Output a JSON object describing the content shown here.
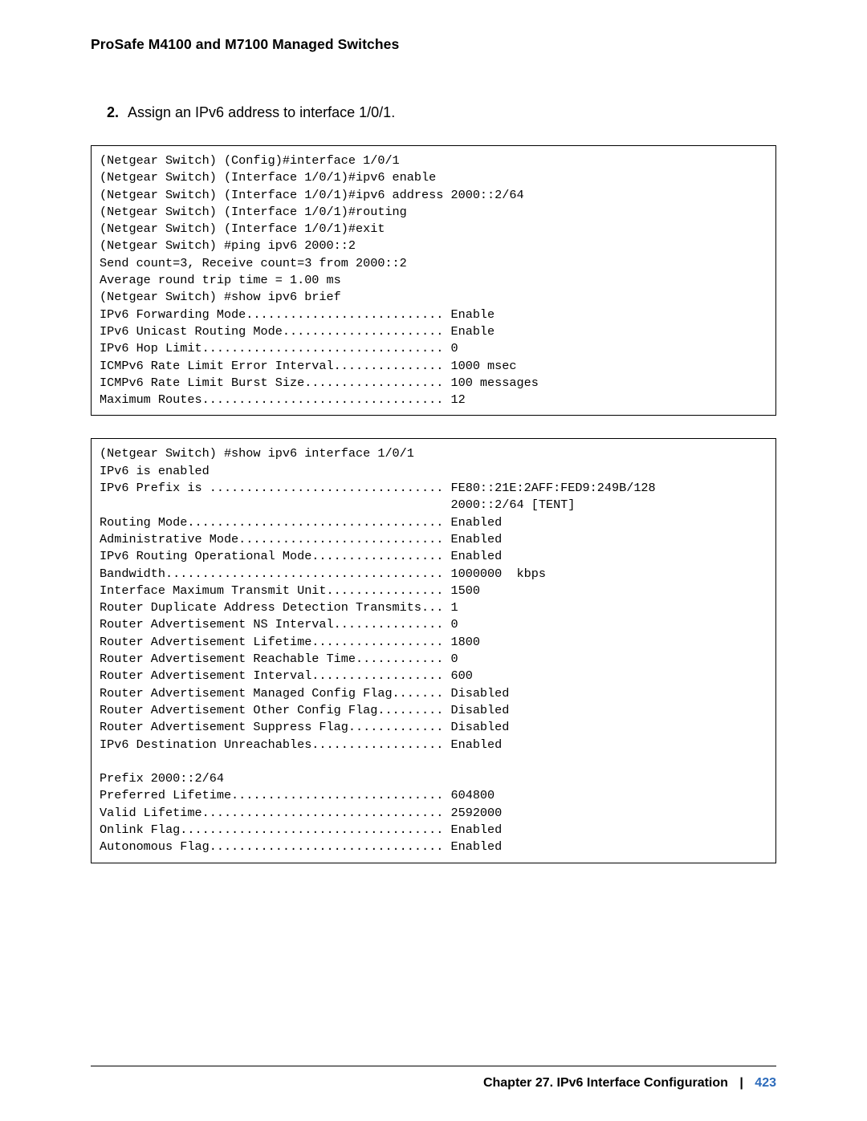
{
  "header": {
    "title": "ProSafe M4100 and M7100 Managed Switches"
  },
  "step": {
    "number": "2.",
    "text": "Assign an IPv6 address to interface 1/0/1."
  },
  "code_block_1": "(Netgear Switch) (Config)#interface 1/0/1\n(Netgear Switch) (Interface 1/0/1)#ipv6 enable\n(Netgear Switch) (Interface 1/0/1)#ipv6 address 2000::2/64\n(Netgear Switch) (Interface 1/0/1)#routing\n(Netgear Switch) (Interface 1/0/1)#exit\n(Netgear Switch) #ping ipv6 2000::2\nSend count=3, Receive count=3 from 2000::2\nAverage round trip time = 1.00 ms\n(Netgear Switch) #show ipv6 brief\nIPv6 Forwarding Mode........................... Enable\nIPv6 Unicast Routing Mode...................... Enable\nIPv6 Hop Limit................................. 0\nICMPv6 Rate Limit Error Interval............... 1000 msec\nICMPv6 Rate Limit Burst Size................... 100 messages\nMaximum Routes................................. 12",
  "code_block_2": "(Netgear Switch) #show ipv6 interface 1/0/1\nIPv6 is enabled\nIPv6 Prefix is ................................ FE80::21E:2AFF:FED9:249B/128\n                                                2000::2/64 [TENT]\nRouting Mode................................... Enabled\nAdministrative Mode............................ Enabled\nIPv6 Routing Operational Mode.................. Enabled\nBandwidth...................................... 1000000  kbps\nInterface Maximum Transmit Unit................ 1500\nRouter Duplicate Address Detection Transmits... 1\nRouter Advertisement NS Interval............... 0\nRouter Advertisement Lifetime.................. 1800\nRouter Advertisement Reachable Time............ 0\nRouter Advertisement Interval.................. 600\nRouter Advertisement Managed Config Flag....... Disabled\nRouter Advertisement Other Config Flag......... Disabled\nRouter Advertisement Suppress Flag............. Disabled\nIPv6 Destination Unreachables.................. Enabled\n\nPrefix 2000::2/64\nPreferred Lifetime............................. 604800\nValid Lifetime................................. 2592000\nOnlink Flag.................................... Enabled\nAutonomous Flag................................ Enabled",
  "footer": {
    "chapter": "Chapter 27.  IPv6 Interface Configuration",
    "separator": "|",
    "page": "423"
  }
}
